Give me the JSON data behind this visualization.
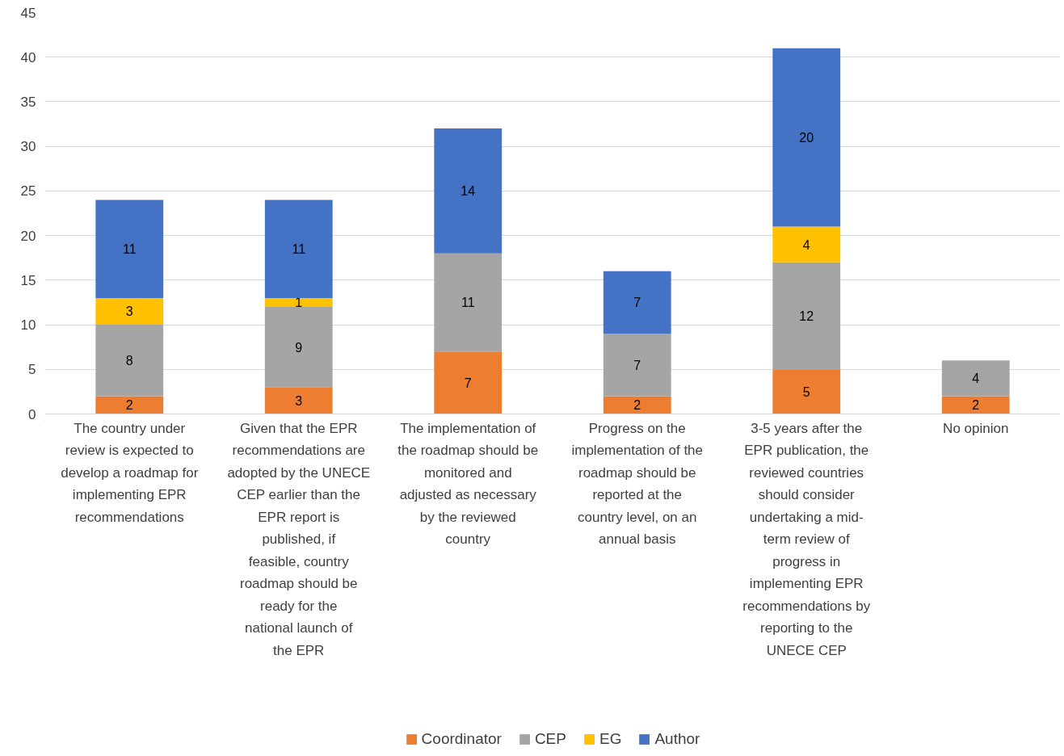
{
  "chart_data": {
    "type": "bar",
    "stacked": true,
    "data_labels": true,
    "grid": "y",
    "legend": "bottom",
    "categories": [
      "The country under review is expected to develop a roadmap for implementing EPR recommendations",
      "Given that the EPR recommendations are adopted by the UNECE CEP earlier than the EPR report is published, if feasible, country roadmap should be ready for the national launch of the EPR",
      "The implementation of the roadmap should be monitored and adjusted as necessary by the reviewed country",
      "Progress on the implementation of the roadmap should be reported at the country level, on an annual basis",
      "3-5 years after the EPR publication, the reviewed countries should consider undertaking a mid-term review of progress in implementing EPR recommendations by reporting to the UNECE CEP",
      "No opinion"
    ],
    "ylim": [
      0,
      45
    ],
    "yticks": [
      0,
      5,
      10,
      15,
      20,
      25,
      30,
      35,
      40,
      45
    ],
    "series": [
      {
        "name": "Coordinator",
        "color": "#ed7d31",
        "values": [
          2,
          3,
          7,
          2,
          5,
          2
        ]
      },
      {
        "name": "CEP",
        "color": "#a5a5a5",
        "values": [
          8,
          9,
          11,
          7,
          12,
          4
        ]
      },
      {
        "name": "EG",
        "color": "#ffc000",
        "values": [
          3,
          1,
          null,
          null,
          4,
          null
        ]
      },
      {
        "name": "Author",
        "color": "#4472c4",
        "values": [
          11,
          11,
          14,
          7,
          20,
          null
        ]
      }
    ]
  }
}
